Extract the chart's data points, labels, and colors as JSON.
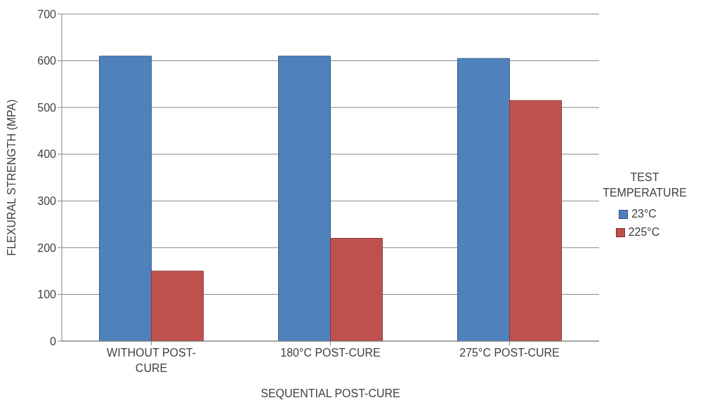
{
  "chart_data": {
    "type": "bar",
    "xlabel": "SEQUENTIAL POST-CURE",
    "ylabel": "FLEXURAL STRENGTH (MPA)",
    "legend_title": "TEST TEMPERATURE",
    "categories": [
      "WITHOUT POST-CURE",
      "180°C POST-CURE",
      "275°C POST-CURE"
    ],
    "series": [
      {
        "name": "23°C",
        "color": "#4f81bd",
        "values": [
          610,
          610,
          605
        ]
      },
      {
        "name": "225°C",
        "color": "#c0504d",
        "values": [
          150,
          220,
          515
        ]
      }
    ],
    "ylim": [
      0,
      700
    ],
    "yticks": [
      0,
      100,
      200,
      300,
      400,
      500,
      600,
      700
    ],
    "grid": "y",
    "legend": "right"
  }
}
